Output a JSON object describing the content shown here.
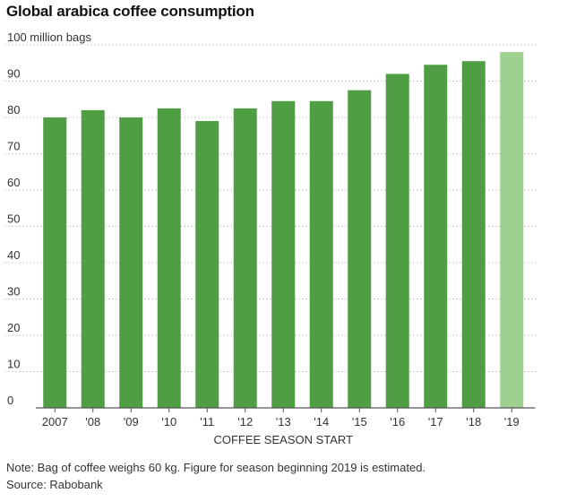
{
  "header": {
    "title": "Global arabica coffee consumption"
  },
  "chart_data": {
    "type": "bar",
    "title": "Global arabica coffee consumption",
    "ylabel": "100 million bags",
    "xlabel": "COFFEE SEASON START",
    "categories": [
      "2007",
      "'08",
      "'09",
      "'10",
      "'11",
      "'12",
      "'13",
      "'14",
      "'15",
      "'16",
      "'17",
      "'18",
      "'19"
    ],
    "values": [
      80,
      82,
      80,
      82.5,
      79,
      82.5,
      84.5,
      84.5,
      87.5,
      92,
      94.5,
      95.5,
      98
    ],
    "estimated": [
      false,
      false,
      false,
      false,
      false,
      false,
      false,
      false,
      false,
      false,
      false,
      false,
      true
    ],
    "ylim": [
      0,
      100
    ],
    "yticks": [
      0,
      10,
      20,
      30,
      40,
      50,
      60,
      70,
      80,
      90
    ],
    "top_tick_label": "100 million bags",
    "grid": true,
    "colors": {
      "bar": "#4f9e43",
      "bar_estimated": "#9fd08f",
      "grid": "#cfcfcf",
      "baseline": "#555555"
    }
  },
  "footer": {
    "note": "Note: Bag of coffee weighs 60 kg. Figure for season beginning 2019 is estimated.",
    "source": "Source: Rabobank"
  }
}
